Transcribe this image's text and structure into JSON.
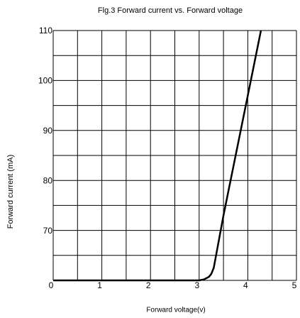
{
  "chart_data": {
    "type": "line",
    "title": "Flg.3 Forward current vs. Forward voltage",
    "x_label": "Forward voltage(v)",
    "y_label": "Forward current (mA)",
    "x": [
      0,
      3.0,
      3.1,
      3.2,
      3.25,
      3.3,
      3.5,
      4.0,
      4.27
    ],
    "series": [
      {
        "color": "#000000",
        "values": [
          60,
          60,
          60.2,
          60.7,
          61.3,
          62.5,
          73,
          97,
          110
        ]
      }
    ],
    "xlim": [
      0,
      5
    ],
    "ylim": [
      60,
      110
    ],
    "xticks": [
      0,
      1,
      2,
      3,
      4,
      5
    ],
    "yticks": [
      70,
      80,
      90,
      100,
      110
    ],
    "xgrid": [
      0,
      0.5,
      1,
      1.5,
      2,
      2.5,
      3,
      3.5,
      4,
      4.5,
      5
    ],
    "ygrid": [
      60,
      65,
      70,
      75,
      80,
      85,
      90,
      95,
      100,
      105,
      110
    ],
    "grid": true
  }
}
